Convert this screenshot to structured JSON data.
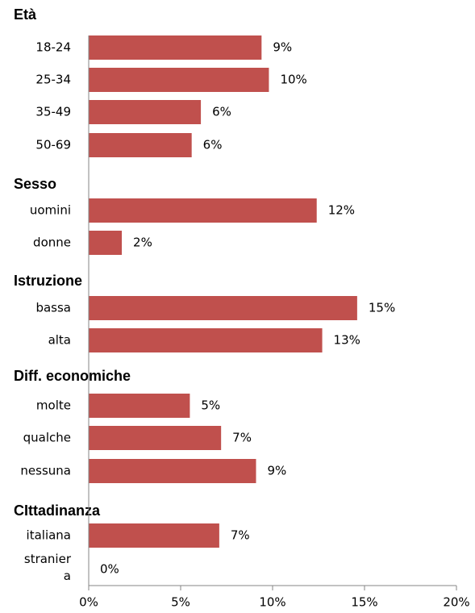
{
  "chart_data": {
    "type": "bar",
    "orientation": "horizontal",
    "xlim": [
      0,
      20
    ],
    "xticks": [
      "0%",
      "5%",
      "10%",
      "15%",
      "20%"
    ],
    "grid": false,
    "bar_color": "#c0504d",
    "groups": [
      {
        "label": "Età",
        "items": [
          {
            "category": "18-24",
            "value": 9.4,
            "label": "9%"
          },
          {
            "category": "25-34",
            "value": 9.8,
            "label": "10%"
          },
          {
            "category": "35-49",
            "value": 6.1,
            "label": "6%"
          },
          {
            "category": "50-69",
            "value": 5.6,
            "label": "6%"
          }
        ]
      },
      {
        "label": "Sesso",
        "items": [
          {
            "category": "uomini",
            "value": 12.4,
            "label": "12%"
          },
          {
            "category": "donne",
            "value": 1.8,
            "label": "2%"
          }
        ]
      },
      {
        "label": "Istruzione",
        "items": [
          {
            "category": "bassa",
            "value": 14.6,
            "label": "15%"
          },
          {
            "category": "alta",
            "value": 12.7,
            "label": "13%"
          }
        ]
      },
      {
        "label": "Diff. economiche",
        "items": [
          {
            "category": "molte",
            "value": 5.5,
            "label": "5%"
          },
          {
            "category": "qualche",
            "value": 7.2,
            "label": "7%"
          },
          {
            "category": "nessuna",
            "value": 9.1,
            "label": "9%"
          }
        ]
      },
      {
        "label": "CIttadinanza",
        "items": [
          {
            "category": "italiana",
            "value": 7.1,
            "label": "7%"
          },
          {
            "category": "stranier a",
            "category_lines": [
              "stranier",
              "a"
            ],
            "value": 0,
            "label": "0%"
          }
        ]
      }
    ]
  }
}
